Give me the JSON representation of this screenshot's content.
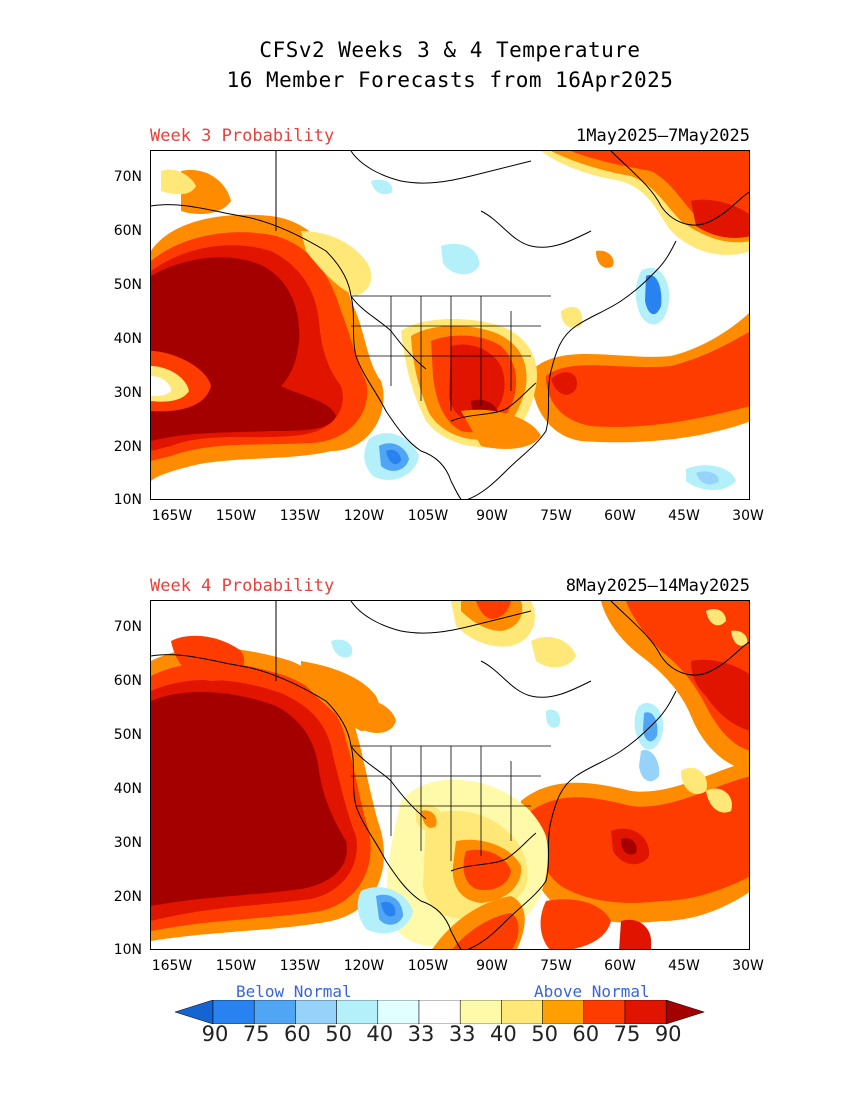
{
  "title": {
    "line1": "CFSv2 Weeks 3 & 4 Temperature",
    "line2": "16 Member Forecasts from 16Apr2025"
  },
  "panels": [
    {
      "label": "Week 3 Probability",
      "label_color": "#e8403c",
      "dates": "1May2025–7May2025"
    },
    {
      "label": "Week 4 Probability",
      "label_color": "#e8403c",
      "dates": "8May2025–14May2025"
    }
  ],
  "axes": {
    "lat_labels": [
      "70N",
      "60N",
      "50N",
      "40N",
      "30N",
      "20N",
      "10N"
    ],
    "lon_labels": [
      "165W",
      "150W",
      "135W",
      "120W",
      "105W",
      "90W",
      "75W",
      "60W",
      "45W",
      "30W"
    ]
  },
  "legend": {
    "below_label": "Below Normal",
    "above_label": "Above Normal",
    "below_color": "#3a64d8",
    "above_color": "#3a64d8",
    "values": [
      "90",
      "75",
      "60",
      "50",
      "40",
      "33",
      "33",
      "40",
      "50",
      "60",
      "75",
      "90"
    ],
    "colors": [
      "#1464d2",
      "#2882f0",
      "#50a5f5",
      "#96d2fa",
      "#b4f0fa",
      "#e1ffff",
      "#ffffff",
      "#fffaaa",
      "#ffe878",
      "#ffa000",
      "#ff3c00",
      "#e11400",
      "#a50000"
    ]
  }
}
